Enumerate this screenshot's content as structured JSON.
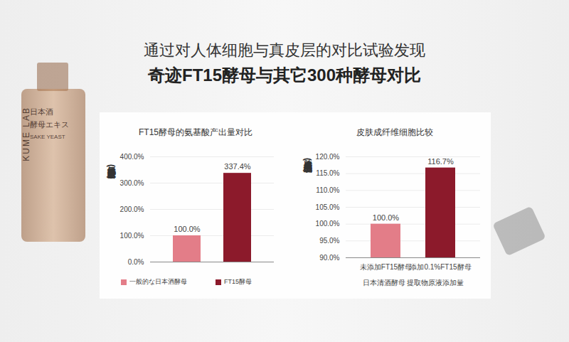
{
  "header": {
    "lines": [
      "通过对人体细胞与真皮层的对比试验发现",
      "奇迹FT15酵母与其它300种酵母对比"
    ]
  },
  "product": {
    "labels": [
      "日本酒",
      "酵母エキス",
      "SAKE YEAST",
      "KUME LAB"
    ]
  },
  "chart_data": [
    {
      "type": "bar",
      "title": "FT15酵母的氨基酸产出量对比",
      "y_label": "氨基酸产出量(%)",
      "categories": [
        "一般的な日本酒酵母",
        "FT15酵母"
      ],
      "values": [
        100,
        337.4
      ],
      "value_labels": [
        "100.0%",
        "337.4%"
      ],
      "colors": [
        "#e37d88",
        "#8c1a2b"
      ],
      "ylim": [
        0,
        400
      ],
      "yticks": [
        {
          "value": 0,
          "label": "0.0%"
        },
        {
          "value": 100,
          "label": "100.0%"
        },
        {
          "value": 200,
          "label": "200.0%"
        },
        {
          "value": 300,
          "label": "300.0%"
        },
        {
          "value": 400,
          "label": "400.0%"
        }
      ],
      "grid": true,
      "data_labels": true,
      "legend": "bottom",
      "tick_labels": "y"
    },
    {
      "type": "bar",
      "title": "皮肤成纤维细胞比较",
      "y_label": "皮肤成纤维细胞(%)",
      "x_label": "日本清酒酵母 提取物原液添加量",
      "categories": [
        "未添加FT15酵母",
        "添加0.1%FT15酵母"
      ],
      "values": [
        100,
        116.7
      ],
      "value_labels": [
        "100.0%",
        "116.7%"
      ],
      "colors": [
        "#e37d88",
        "#8c1a2b"
      ],
      "ylim": [
        90,
        120
      ],
      "yticks": [
        {
          "value": 90,
          "label": "90.0%"
        },
        {
          "value": 95,
          "label": "95.0%"
        },
        {
          "value": 100,
          "label": "100.0%"
        },
        {
          "value": 105,
          "label": "105.0%"
        },
        {
          "value": 110,
          "label": "110.0%"
        },
        {
          "value": 115,
          "label": "115.0%"
        },
        {
          "value": 120,
          "label": "120.0%"
        }
      ],
      "grid": true,
      "data_labels": true
    }
  ]
}
